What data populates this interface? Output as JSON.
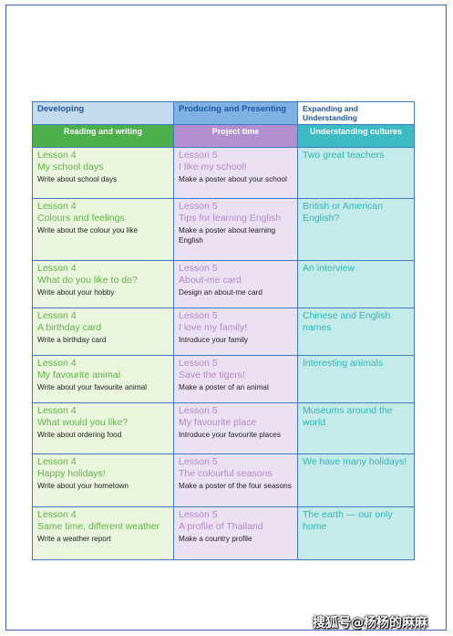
{
  "header": {
    "col1": "Developing",
    "col2": "Producing and Presenting",
    "col3": "Expanding and Understanding"
  },
  "subheader": {
    "col1": "Reading and writing",
    "col2": "Project time",
    "col3": "Understanding cultures"
  },
  "rows": [
    {
      "reading": {
        "lesson": "Lesson 4",
        "title": "My school days",
        "desc": "Write about school days"
      },
      "project": {
        "lesson": "Lesson 5",
        "title": "I like my school!",
        "desc": "Make a poster about your school"
      },
      "culture": "Two great teachers"
    },
    {
      "reading": {
        "lesson": "Lesson 4",
        "title": "Colours and feelings",
        "desc": "Write about the colour you like"
      },
      "project": {
        "lesson": "Lesson 5",
        "title": "Tips for learning English",
        "desc": "Make a poster about learning English"
      },
      "culture": "British or American English?"
    },
    {
      "reading": {
        "lesson": "Lesson 4",
        "title": "What do you like to do?",
        "desc": "Write about your hobby"
      },
      "project": {
        "lesson": "Lesson 5",
        "title": "About-me card",
        "desc": "Design an about-me card"
      },
      "culture": "An interview"
    },
    {
      "reading": {
        "lesson": "Lesson 4",
        "title": "A birthday card",
        "desc": "Write a birthday card"
      },
      "project": {
        "lesson": "Lesson 5",
        "title": "I love my family!",
        "desc": "Introduce your family"
      },
      "culture": "Chinese and English names"
    },
    {
      "reading": {
        "lesson": "Lesson 4",
        "title": "My favourite animal",
        "desc": "Write about your favourite animal"
      },
      "project": {
        "lesson": "Lesson 5",
        "title": "Save the tigers!",
        "desc": "Make a poster of an animal"
      },
      "culture": "Interesting animals"
    },
    {
      "reading": {
        "lesson": "Lesson 4",
        "title": "What would you like?",
        "desc": "Write about ordering food"
      },
      "project": {
        "lesson": "Lesson 5",
        "title": "My favourite place",
        "desc": "Introduce your favourite places"
      },
      "culture": "Museums around the world"
    },
    {
      "reading": {
        "lesson": "Lesson 4",
        "title": "Happy holidays!",
        "desc": "Write about your hometown"
      },
      "project": {
        "lesson": "Lesson 5",
        "title": "The colourful seasons",
        "desc": "Make a poster of the four seasons"
      },
      "culture": "We have many holidays!"
    },
    {
      "reading": {
        "lesson": "Lesson 4",
        "title": "Same time, different weather",
        "desc": "Write a weather report"
      },
      "project": {
        "lesson": "Lesson 5",
        "title": "A profile of Thailand",
        "desc": "Make a country profile"
      },
      "culture": "The earth — our only home"
    }
  ],
  "watermark": "搜狐号@杨杨的麻麻"
}
